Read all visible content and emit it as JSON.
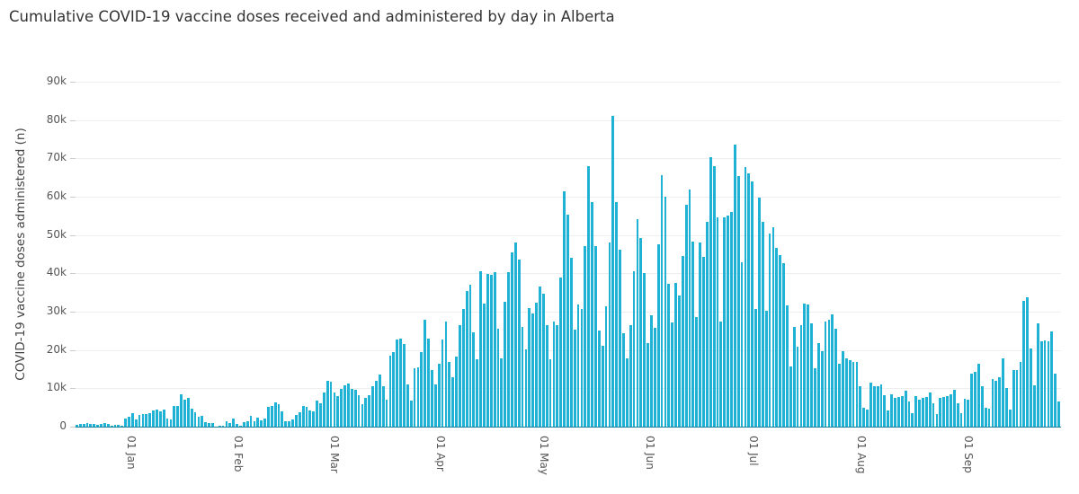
{
  "chart_data": {
    "type": "bar",
    "title": "Cumulative COVID-19 vaccine doses received and administered by day in Alberta",
    "xlabel": "",
    "ylabel": "COVID-19 vaccine doses administered (n)",
    "ylim": [
      0,
      90000
    ],
    "yticks": [
      "0",
      "10k",
      "20k",
      "30k",
      "40k",
      "50k",
      "60k",
      "70k",
      "80k",
      "90k"
    ],
    "xticks": [
      "01 Jan",
      "01 Feb",
      "01 Mar",
      "01 Apr",
      "01 May",
      "01 Jun",
      "01 Jul",
      "01 Aug",
      "01 Sep"
    ],
    "grid": true,
    "legend": "none",
    "bar_color": "#1fb2d4",
    "x_start": "15 Dec",
    "x_end": "30 Sep",
    "series": [
      {
        "name": "COVID-19 vaccine doses administered",
        "values": [
          400,
          600,
          700,
          1000,
          600,
          700,
          500,
          600,
          900,
          600,
          300,
          400,
          500,
          300,
          2000,
          2600,
          3500,
          1800,
          3000,
          3200,
          3200,
          3500,
          4300,
          4500,
          3900,
          4500,
          2000,
          1900,
          5500,
          5300,
          8500,
          7000,
          7500,
          4700,
          3800,
          2500,
          2800,
          1200,
          1000,
          900,
          100,
          200,
          300,
          1500,
          1000,
          2200,
          800,
          200,
          1200,
          1500,
          2800,
          1500,
          2400,
          1600,
          2000,
          5100,
          5400,
          6300,
          5800,
          4000,
          1400,
          1300,
          1800,
          3000,
          3800,
          5300,
          5200,
          4300,
          4000,
          6800,
          6200,
          9000,
          12000,
          11800,
          9000,
          8000,
          9900,
          10700,
          11300,
          9800,
          9500,
          8300,
          5800,
          7600,
          8100,
          10500,
          12000,
          13500,
          10500,
          7000,
          18500,
          19500,
          22800,
          22900,
          21500,
          11000,
          6800,
          15300,
          15500,
          19500,
          27800,
          23000,
          14800,
          11000,
          16400,
          22800,
          27500,
          16800,
          13000,
          18400,
          26500,
          30600,
          35400,
          37000,
          24700,
          17600,
          40500,
          32100,
          39900,
          39700,
          40200,
          25500,
          17900,
          32500,
          40200,
          45500,
          48000,
          43600,
          26100,
          20200,
          30900,
          29600,
          32300,
          36600,
          34600,
          26500,
          17500,
          27500,
          26600,
          39000,
          61400,
          55300,
          44000,
          25400,
          31800,
          30600,
          47000,
          68000,
          58500,
          47000,
          25000,
          21000,
          31500,
          48000,
          81200,
          58500,
          46200,
          24300,
          17700,
          26500,
          40500,
          54200,
          49300,
          40100,
          21700,
          29000,
          25800,
          47500,
          65700,
          60000,
          37300,
          27200,
          37500,
          34300,
          44500,
          58000,
          61800,
          48300,
          28500,
          48000,
          44400,
          53500,
          70200,
          68000,
          54500,
          27500,
          54600,
          55000,
          56000,
          73600,
          65400,
          43000,
          67700,
          66200,
          64000,
          30700,
          59800,
          53500,
          30200,
          50500,
          52000,
          46600,
          44700,
          42600,
          31600,
          15600,
          26000,
          20800,
          26600,
          32200,
          31900,
          27000,
          15300,
          21700,
          19800,
          27500,
          28000,
          29400,
          25500,
          16500,
          19600,
          17800,
          17300,
          16900,
          16900,
          10500,
          4900,
          4500,
          11500,
          10500,
          10500,
          11000,
          8100,
          4300,
          8400,
          7500,
          7800,
          8000,
          9400,
          6500,
          3500,
          8000,
          7000,
          7500,
          7700,
          8900,
          6000,
          3200,
          7500,
          7800,
          7900,
          8500,
          9500,
          6100,
          3500,
          7200,
          7100,
          13800,
          14400,
          16500,
          10600,
          5000,
          4600,
          12500,
          12000,
          13000,
          17700,
          10100,
          4500,
          14800,
          14800,
          16800,
          32800,
          33700,
          20300,
          10800,
          26900,
          22200,
          22500,
          22200,
          24900,
          13900,
          6600
        ]
      }
    ]
  }
}
